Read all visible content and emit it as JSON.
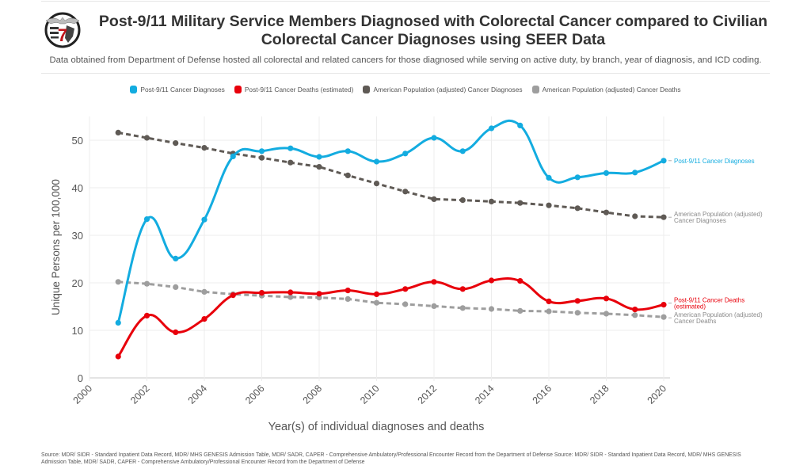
{
  "header": {
    "title_line1": "Post-9/11 Military Service Members Diagnosed with Colorectal Cancer compared to Civilian",
    "title_line2": "Colorectal Cancer Diagnoses using SEER Data",
    "subtitle": "Data obtained from Department of Defense hosted all colorectal and related cancers for those diagnosed while serving on active duty, by branch, year of diagnosis, and ICD coding.",
    "logo_icon": "military-emblem-logo-icon"
  },
  "footer": {
    "source": "Source: MDR/ SIDR - Standard Inpatient Data Record, MDR/ MHS GENESIS Admission Table, MDR/ SADR, CAPER - Comprehensive Ambulatory/Professional Encounter Record from the Department of Defense Source: MDR/ SIDR - Standard Inpatient Data Record, MDR/ MHS GENESIS Admission Table, MDR/ SADR, CAPER - Comprehensive Ambulatory/Professional Encounter Record from the Department of Defense"
  },
  "chart_data": {
    "type": "line",
    "title": "Post-9/11 Military Service Members Diagnosed with Colorectal Cancer compared to Civilian Colorectal Cancer Diagnoses using SEER Data",
    "xlabel": "Year(s) of individual diagnoses and deaths",
    "ylabel": "Unique Persons per 100,000",
    "xlim": [
      2000,
      2020
    ],
    "ylim": [
      0,
      55
    ],
    "x_ticks": [
      "2000",
      "2002",
      "2004",
      "2006",
      "2008",
      "2010",
      "2012",
      "2014",
      "2016",
      "2018",
      "2020"
    ],
    "y_ticks": [
      "0",
      "10",
      "20",
      "30",
      "40",
      "50"
    ],
    "grid": true,
    "legend_position": "top-center",
    "x": [
      2001,
      2002,
      2003,
      2004,
      2005,
      2006,
      2007,
      2008,
      2009,
      2010,
      2011,
      2012,
      2013,
      2014,
      2015,
      2016,
      2017,
      2018,
      2019,
      2020
    ],
    "series": [
      {
        "name": "Post-9/11 Cancer Diagnoses",
        "end_label": [
          "Post-9/11 Cancer Diagnoses"
        ],
        "color": "#13ace0",
        "style": "solid-smooth",
        "values": [
          11.6,
          33.4,
          25.1,
          33.3,
          46.6,
          47.7,
          48.3,
          46.5,
          47.7,
          45.5,
          47.2,
          50.5,
          47.7,
          52.5,
          53.1,
          42.1,
          42.2,
          43.1,
          43.2,
          45.7
        ]
      },
      {
        "name": "Post-9/11 Cancer Deaths (estimated)",
        "end_label": [
          "Post-9/11 Cancer Deaths",
          "(estimated)"
        ],
        "color": "#e8000b",
        "style": "solid-smooth",
        "values": [
          4.5,
          13.1,
          9.6,
          12.4,
          17.4,
          17.9,
          18.0,
          17.7,
          18.4,
          17.6,
          18.7,
          20.2,
          18.7,
          20.5,
          20.4,
          16.1,
          16.2,
          16.7,
          14.4,
          15.4
        ]
      },
      {
        "name": "American Population (adjusted) Cancer Diagnoses",
        "end_label": [
          "American Population (adjusted)",
          "Cancer Diagnoses"
        ],
        "color": "#5f5a55",
        "style": "dashed",
        "values": [
          51.6,
          50.5,
          49.4,
          48.4,
          47.2,
          46.3,
          45.3,
          44.4,
          42.6,
          40.9,
          39.2,
          37.6,
          37.4,
          37.1,
          36.8,
          36.3,
          35.7,
          34.8,
          34.0,
          33.8
        ]
      },
      {
        "name": "American Population (adjusted) Cancer Deaths",
        "end_label": [
          "American Population (adjusted)",
          "Cancer Deaths"
        ],
        "color": "#9e9e9e",
        "style": "dashed",
        "values": [
          20.2,
          19.8,
          19.1,
          18.1,
          17.6,
          17.3,
          17.0,
          16.9,
          16.6,
          15.8,
          15.5,
          15.1,
          14.7,
          14.5,
          14.1,
          14.0,
          13.7,
          13.5,
          13.2,
          12.8
        ]
      }
    ]
  }
}
